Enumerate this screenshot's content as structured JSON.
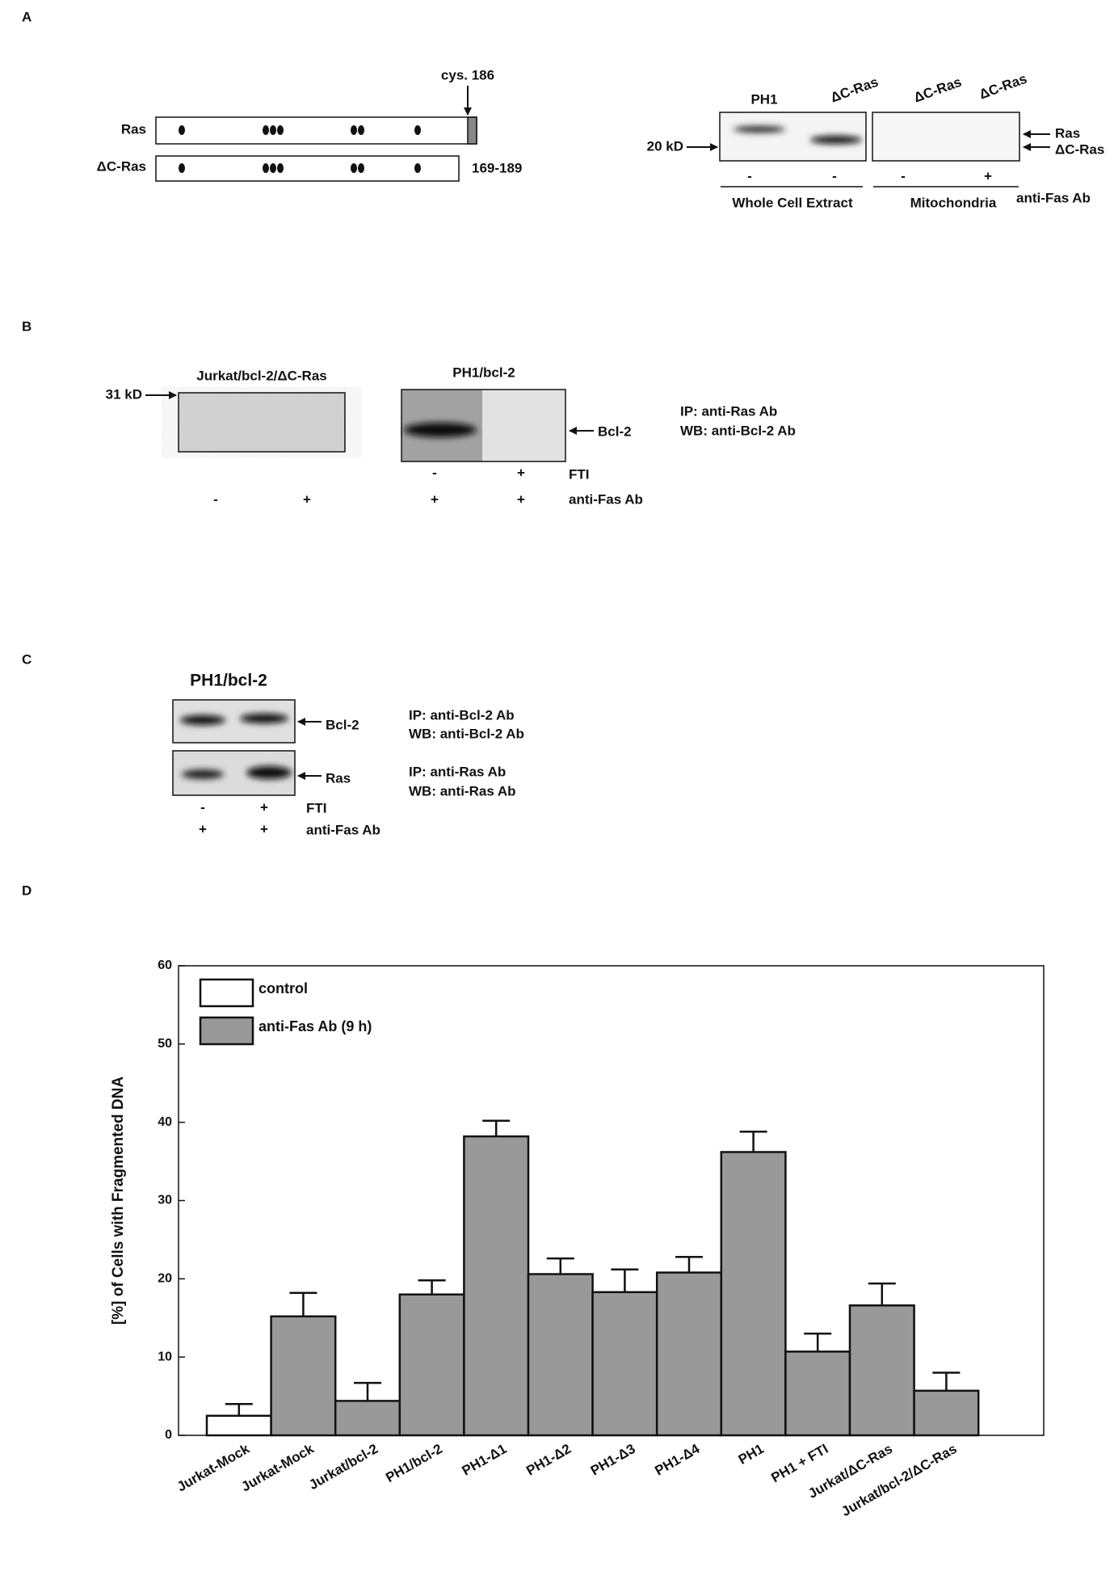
{
  "panel_a": {
    "label": "A",
    "cys_label": "cys. 186",
    "rows": [
      "Ras",
      "ΔC-Ras"
    ],
    "range_label": "169-189",
    "marker": "20 kD",
    "lanes": [
      "PH1",
      "ΔC-Ras",
      "ΔC-Ras",
      "ΔC-Ras"
    ],
    "bands": [
      "Ras",
      "ΔC-Ras"
    ],
    "signs": [
      "-",
      "-",
      "-",
      "+"
    ],
    "treatment": "anti-Fas Ab",
    "groups": [
      "Whole Cell Extract",
      "Mitochondria"
    ]
  },
  "panel_b": {
    "label": "B",
    "blot_titles": [
      "Jurkat/bcl-2/ΔC-Ras",
      "PH1/bcl-2"
    ],
    "marker": "31 kD",
    "band": "Bcl-2",
    "notes": [
      "IP: anti-Ras Ab",
      "WB: anti-Bcl-2 Ab"
    ],
    "fti_signs": [
      "-",
      "+"
    ],
    "fti": "FTI",
    "fas_signs": [
      "-",
      "+",
      "+",
      "+"
    ],
    "fas": "anti-Fas Ab"
  },
  "panel_c": {
    "label": "C",
    "title": "PH1/bcl-2",
    "bands": [
      "Bcl-2",
      "Ras"
    ],
    "notes": [
      [
        "IP: anti-Bcl-2 Ab",
        "WB: anti-Bcl-2 Ab"
      ],
      [
        "IP: anti-Ras Ab",
        "WB: anti-Ras Ab"
      ]
    ],
    "fti_signs": [
      "-",
      "+"
    ],
    "fti": "FTI",
    "fas_signs": [
      "+",
      "+"
    ],
    "fas": "anti-Fas Ab"
  },
  "chart_data": {
    "type": "bar",
    "panel_label": "D",
    "y_label": "[%] of Cells with Fragmented DNA",
    "categories": [
      "Jurkat-Mock",
      "Jurkat-Mock",
      "Jurkat/bcl-2",
      "PH1/bcl-2",
      "PH1-Δ1",
      "PH1-Δ2",
      "PH1-Δ3",
      "PH1-Δ4",
      "PH1",
      "PH1 + FTI",
      "Jurkat/ΔC-Ras",
      "Jurkat/bcl-2/ΔC-Ras"
    ],
    "series": [
      {
        "name": "control",
        "color": "#ffffff",
        "values": [
          2.5,
          null,
          null,
          null,
          null,
          null,
          null,
          null,
          null,
          null,
          null,
          null
        ],
        "errors": [
          1.5,
          null,
          null,
          null,
          null,
          null,
          null,
          null,
          null,
          null,
          null,
          null
        ]
      },
      {
        "name": "anti-Fas Ab (9 h)",
        "color": "#999999",
        "values": [
          null,
          15.2,
          4.4,
          18,
          38.2,
          20.6,
          18.3,
          20.8,
          36.2,
          10.7,
          16.6,
          5.7
        ],
        "errors": [
          null,
          3,
          2.3,
          1.8,
          2,
          2,
          2.9,
          2,
          2.6,
          2.3,
          2.8,
          2.3
        ]
      }
    ],
    "ylim": [
      0,
      60
    ],
    "yticks": [
      0,
      10,
      20,
      30,
      40,
      50,
      60
    ],
    "legend": "upper left"
  }
}
